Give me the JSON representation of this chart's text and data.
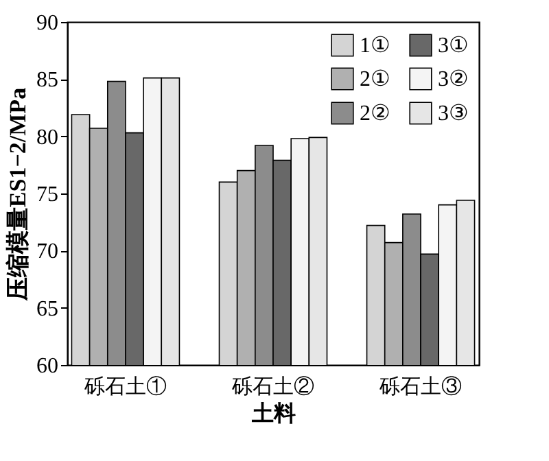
{
  "chart_data": {
    "type": "bar",
    "xlabel": "土料",
    "ylabel": "压缩模量ES1−2/MPa",
    "categories": [
      "砾石土①",
      "砾石土②",
      "砾石土③"
    ],
    "series": [
      {
        "name": "1①",
        "color": "#d4d4d4",
        "values": [
          81.9,
          76.0,
          72.2
        ]
      },
      {
        "name": "2①",
        "color": "#b0b0b0",
        "values": [
          80.7,
          77.0,
          70.7
        ]
      },
      {
        "name": "2②",
        "color": "#8c8c8c",
        "values": [
          84.8,
          79.2,
          73.2
        ]
      },
      {
        "name": "3①",
        "color": "#686868",
        "values": [
          80.3,
          77.9,
          69.7
        ]
      },
      {
        "name": "3②",
        "color": "#f4f4f4",
        "values": [
          85.1,
          79.8,
          74.0
        ]
      },
      {
        "name": "3③",
        "color": "#e6e6e6",
        "values": [
          85.1,
          79.9,
          74.4
        ]
      }
    ],
    "ylim": [
      60,
      90
    ],
    "yticks": [
      60,
      65,
      70,
      75,
      80,
      85,
      90
    ],
    "grid": false,
    "legend": "top right"
  }
}
